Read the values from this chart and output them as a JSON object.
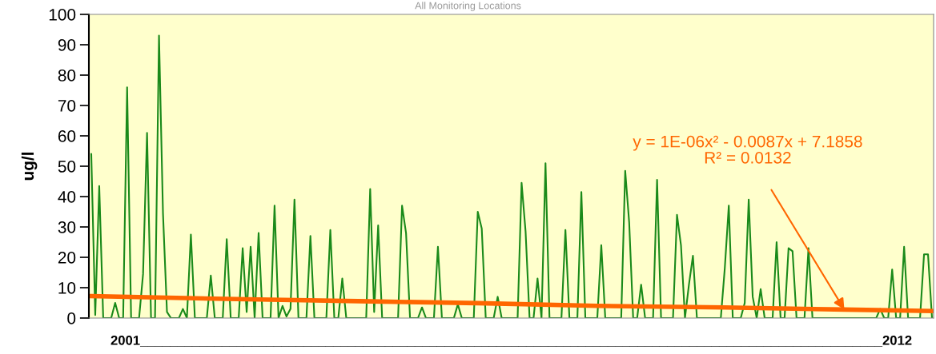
{
  "chart_data": {
    "type": "line",
    "title": "All Monitoring Locations",
    "xlabel": "2001____________________________________________________________________________________________________2012",
    "ylabel": "ug/l",
    "categories": [
      null,
      null,
      null,
      null,
      null,
      null,
      null,
      null,
      null,
      null,
      null,
      null,
      null,
      null,
      null,
      null,
      null,
      null,
      null,
      null,
      null,
      null,
      null,
      null,
      null,
      null,
      null,
      null,
      null,
      null,
      null,
      null,
      null,
      null,
      null,
      null,
      null,
      null,
      null,
      null,
      null,
      null,
      null,
      null,
      null,
      null,
      null,
      null,
      null,
      null,
      null,
      null,
      null,
      null,
      null,
      null,
      null,
      null,
      null,
      null,
      null,
      null,
      null,
      null,
      null,
      null,
      null,
      null,
      null,
      null,
      null,
      null,
      null,
      null,
      null,
      null,
      null,
      null,
      null,
      null,
      null,
      null,
      null,
      null,
      null,
      null,
      null,
      null,
      null,
      null,
      null,
      null,
      null,
      null,
      null,
      null,
      null,
      null,
      null,
      null,
      null,
      null,
      null,
      null,
      null,
      null,
      null,
      null,
      null,
      null,
      null,
      null,
      null,
      null,
      null,
      null,
      null,
      null,
      null,
      null,
      null,
      null,
      null,
      null,
      null,
      null,
      null,
      null,
      null,
      null,
      null,
      null,
      null,
      null,
      null,
      null,
      null,
      null,
      null,
      null,
      null,
      null,
      null,
      null,
      null,
      null,
      null,
      null,
      null,
      null,
      null,
      null,
      null,
      null,
      null,
      null,
      null,
      null,
      null,
      null,
      null,
      null,
      null,
      null,
      null,
      null,
      null,
      null,
      null,
      null,
      null,
      null,
      null,
      null,
      null,
      null,
      null,
      null,
      null,
      null,
      null,
      null,
      null,
      null,
      null,
      null,
      null,
      null,
      null,
      null,
      null,
      null,
      null,
      null,
      null,
      null,
      null,
      null,
      null,
      null,
      null,
      null,
      null,
      null,
      null,
      null,
      null,
      null,
      null,
      null,
      null,
      null
    ],
    "series": [
      {
        "color": "#1a8a1a",
        "values": [
          54,
          1,
          43.5,
          0,
          0,
          0,
          5,
          0,
          0,
          76,
          0,
          0,
          0,
          14.5,
          61,
          0,
          0,
          93,
          34.5,
          2,
          0,
          0,
          0,
          3,
          0,
          27.5,
          0,
          0,
          0,
          0,
          14,
          0,
          0,
          0,
          26,
          0,
          0,
          0,
          23,
          2,
          23.5,
          0,
          28,
          0,
          0,
          0,
          37,
          0,
          4,
          0.5,
          3,
          39,
          0,
          0,
          0,
          27,
          0,
          0,
          0,
          0,
          29,
          0,
          0,
          13,
          0,
          0,
          0,
          0,
          0,
          0,
          42.5,
          2,
          30.5,
          0,
          0,
          0,
          0,
          0,
          37,
          28,
          0,
          0,
          0,
          3.5,
          0,
          0,
          0,
          23.5,
          0,
          0,
          0,
          0,
          4.5,
          0,
          0,
          0,
          0,
          35,
          29.5,
          0,
          0,
          0,
          7,
          0,
          0,
          0,
          0,
          0,
          44.5,
          28.5,
          0,
          0,
          13,
          0,
          51,
          0,
          0,
          0,
          0,
          29,
          0,
          0,
          0,
          41.5,
          0,
          0,
          0,
          0,
          24,
          0,
          0,
          0,
          0,
          0,
          48.5,
          31.5,
          0,
          0,
          11,
          0,
          0,
          0,
          45.5,
          0,
          0,
          0,
          0,
          34,
          24,
          0,
          11,
          20.5,
          0,
          0,
          0,
          0,
          0,
          0,
          0,
          16.5,
          37,
          0,
          0,
          0,
          5,
          39,
          7,
          0,
          9.5,
          0,
          0,
          0,
          25,
          0,
          0,
          23,
          22,
          0,
          0,
          0,
          23,
          0,
          0,
          0,
          0,
          0,
          0,
          0,
          0,
          0,
          0,
          0,
          0,
          0,
          0,
          0,
          0,
          0,
          3,
          0,
          0,
          16,
          0,
          0,
          23.5,
          0,
          0,
          0,
          0,
          21,
          21,
          0
        ]
      },
      {
        "type": "line",
        "color": "#ff6600",
        "values": [
          7.2,
          null,
          null,
          null,
          null,
          null,
          null,
          null,
          null,
          null,
          null,
          null,
          null,
          null,
          null,
          null,
          null,
          null,
          null,
          null,
          null,
          null,
          null,
          null,
          null,
          null,
          null,
          null,
          null,
          null,
          null,
          null,
          null,
          null,
          null,
          null,
          null,
          null,
          null,
          null,
          null,
          null,
          6.1,
          null,
          null,
          null,
          null,
          null,
          null,
          null,
          null,
          null,
          null,
          null,
          null,
          null,
          null,
          null,
          null,
          null,
          null,
          null,
          null,
          null,
          null,
          null,
          null,
          null,
          null,
          null,
          5.5,
          null,
          null,
          null,
          null,
          null,
          null,
          null,
          null,
          null,
          null,
          null,
          null,
          null,
          null,
          null,
          null,
          null,
          null,
          null,
          null,
          null,
          null,
          null,
          null,
          null,
          null,
          4.9,
          null,
          null,
          null,
          null,
          null,
          null,
          null,
          null,
          null,
          null,
          null,
          null,
          null,
          null,
          null,
          null,
          null,
          null,
          null,
          null,
          null,
          null,
          null,
          null,
          null,
          null,
          null,
          null,
          null,
          4.0,
          null,
          null,
          null,
          null,
          null,
          null,
          null,
          null,
          null,
          null,
          null,
          null,
          null,
          null,
          null,
          null,
          null,
          null,
          null,
          null,
          null,
          null,
          null,
          null,
          null,
          null,
          null,
          null,
          null,
          null,
          null,
          3.5,
          null,
          null,
          null,
          null,
          null,
          null,
          null,
          null,
          null,
          null,
          null,
          null,
          null,
          null,
          null,
          null,
          null,
          null,
          null,
          null,
          null,
          null,
          null,
          null,
          null,
          null,
          null,
          null,
          null,
          2.8,
          null,
          null,
          null,
          null,
          null,
          null,
          null,
          null,
          null,
          null,
          null,
          null,
          null,
          null,
          null,
          null,
          null,
          null,
          null,
          null,
          null,
          2.3
        ]
      }
    ],
    "ylim": [
      0,
      100
    ],
    "yticks": [
      0,
      10,
      20,
      30,
      40,
      50,
      60,
      70,
      80,
      90,
      100
    ],
    "grid": false,
    "legend": false,
    "annotations": [
      "y = 1E-06x² - 0.0087x + 7.1858\nR² = 0.0132"
    ]
  }
}
